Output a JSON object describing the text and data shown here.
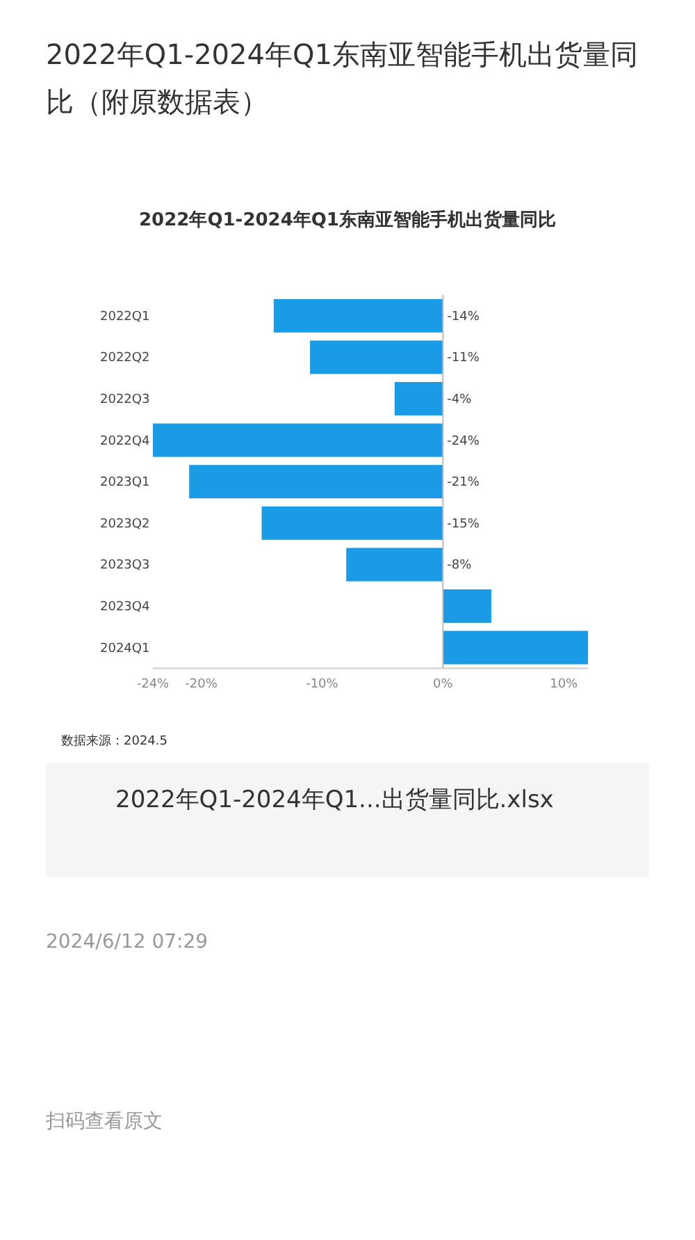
{
  "chart_data": {
    "type": "bar",
    "orientation": "horizontal",
    "title": "2022年Q1-2024年Q1东南亚智能手机出货量同比（附原数据表）",
    "subtitle": "2022年Q1-2024年Q1东南亚智能手机出货量同比",
    "categories": [
      "2022Q1",
      "2022Q2",
      "2022Q3",
      "2022Q4",
      "2023Q1",
      "2023Q2",
      "2023Q3",
      "2023Q4",
      "2024Q1"
    ],
    "values": [
      -14,
      -11,
      -4,
      -24,
      -21,
      -15,
      -8,
      4,
      12
    ],
    "value_labels": [
      "-14%",
      "-11%",
      "-4%",
      "-24%",
      "-21%",
      "-15%",
      "-8%",
      null,
      null
    ],
    "color": "#1a9be6",
    "xlim": [
      -24,
      12
    ],
    "xticks": [
      {
        "value": -24,
        "label": "-24%"
      },
      {
        "value": -20,
        "label": "-20%"
      },
      {
        "value": -10,
        "label": "-10%"
      },
      {
        "value": 0,
        "label": "0%"
      },
      {
        "value": 10,
        "label": "10%"
      }
    ],
    "annotations": [
      "数据来源：2024.5",
      "2022年Q1-2024年Q1...出货量同比.xlsx",
      "2024/6/12 07:29",
      "扫码查看原文"
    ]
  }
}
